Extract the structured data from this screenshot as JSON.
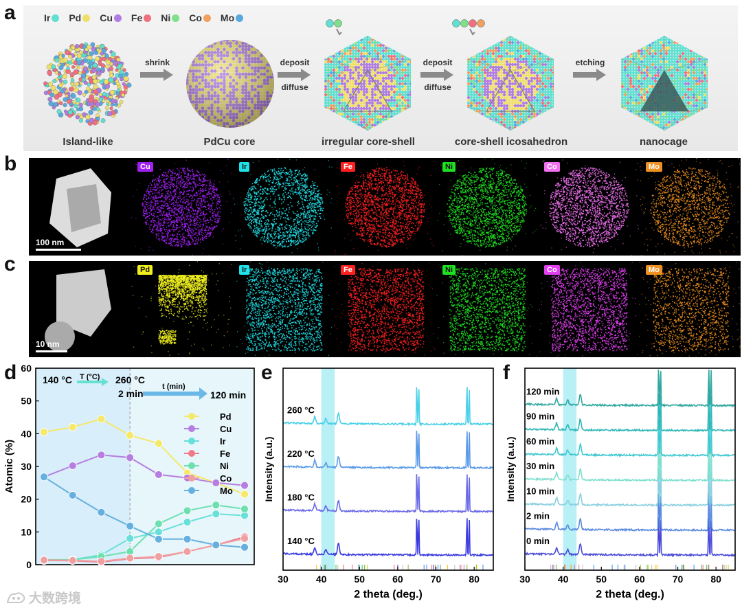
{
  "panel_labels": {
    "a": "a",
    "b": "b",
    "c": "c",
    "d": "d",
    "e": "e",
    "f": "f"
  },
  "panel_a": {
    "legend": [
      {
        "name": "Ir",
        "color": "#5fe0d0"
      },
      {
        "name": "Pd",
        "color": "#f0e06a"
      },
      {
        "name": "Cu",
        "color": "#b07ce0"
      },
      {
        "name": "Fe",
        "color": "#f07080"
      },
      {
        "name": "Ni",
        "color": "#7ee08a"
      },
      {
        "name": "Co",
        "color": "#f0a060"
      },
      {
        "name": "Mo",
        "color": "#5aa8e0"
      }
    ],
    "stages": [
      "Island-like",
      "PdCu core",
      "irregular core-shell",
      "core-shell icosahedron",
      "nanocage"
    ],
    "arrows": [
      {
        "top": "shrink",
        "bottom": ""
      },
      {
        "top": "deposit",
        "bottom": "diffuse"
      },
      {
        "top": "deposit",
        "bottom": "diffuse"
      },
      {
        "top": "etching",
        "bottom": ""
      }
    ]
  },
  "panel_b": {
    "maps": [
      {
        "tag": "",
        "color": "#ffffff"
      },
      {
        "tag": "Cu",
        "color": "#a020f0"
      },
      {
        "tag": "Ir",
        "color": "#20e0e8"
      },
      {
        "tag": "Fe",
        "color": "#ff2020"
      },
      {
        "tag": "Ni",
        "color": "#20e020"
      },
      {
        "tag": "Co",
        "color": "#f070f0"
      },
      {
        "tag": "Mo",
        "color": "#f09020"
      }
    ],
    "scale": "100 nm"
  },
  "panel_c": {
    "maps": [
      {
        "tag": "",
        "color": "#ffffff"
      },
      {
        "tag": "Pd",
        "color": "#f0f020"
      },
      {
        "tag": "Ir",
        "color": "#20e0e8"
      },
      {
        "tag": "Fe",
        "color": "#ff2020"
      },
      {
        "tag": "Ni",
        "color": "#20e020"
      },
      {
        "tag": "Co",
        "color": "#e040f0"
      },
      {
        "tag": "Mo",
        "color": "#f09020"
      }
    ],
    "scale": "10 nm"
  },
  "chart_data": [
    {
      "type": "line",
      "panel": "d",
      "ylabel": "Atomic (%)",
      "ylim": [
        0,
        60
      ],
      "yticks": [
        0,
        10,
        20,
        30,
        40,
        50,
        60
      ],
      "annotations": {
        "start_temp": "140 °C",
        "t_label": "T (°C)",
        "end_temp": "260 °C",
        "start_time": "2 min",
        "time_label": "t (min)",
        "end_time": "120 min"
      },
      "x_points": 8,
      "series": [
        {
          "name": "Pd",
          "color": "#f5e86a",
          "values": [
            40.5,
            42,
            44.5,
            39.5,
            37,
            28,
            25,
            21.5
          ]
        },
        {
          "name": "Cu",
          "color": "#b57ee0",
          "values": [
            26.8,
            30.2,
            33.5,
            32.7,
            27.5,
            26.5,
            25,
            24.2
          ]
        },
        {
          "name": "Ir",
          "color": "#66e0d8",
          "values": [
            1.2,
            1.5,
            3,
            8,
            10,
            13,
            15.5,
            15
          ]
        },
        {
          "name": "Fe",
          "color": "#f07a8a",
          "values": [
            1.3,
            1.2,
            0.8,
            1.8,
            2.2,
            4,
            6,
            8.5
          ]
        },
        {
          "name": "Ni",
          "color": "#6ee0b0",
          "values": [
            1.5,
            1.5,
            2.5,
            4,
            12.5,
            16.5,
            18.2,
            17
          ]
        },
        {
          "name": "Co",
          "color": "#f0a0a0",
          "values": [
            1.4,
            1.3,
            1,
            2,
            2.5,
            4,
            6,
            8
          ]
        },
        {
          "name": "Mo",
          "color": "#66b0e0",
          "values": [
            26.8,
            21.2,
            16,
            11.8,
            7.8,
            7.8,
            6,
            5.3
          ]
        }
      ]
    },
    {
      "type": "line",
      "panel": "e",
      "xlabel": "2 theta (deg.)",
      "ylabel": "Intensity (a.u.)",
      "xlim": [
        30,
        85
      ],
      "xticks": [
        30,
        40,
        50,
        60,
        70,
        80
      ],
      "highlight": [
        40,
        43.5
      ],
      "series": [
        {
          "name": "140 °C",
          "color": "#3a3ae0"
        },
        {
          "name": "180 °C",
          "color": "#6a6ae8"
        },
        {
          "name": "220 °C",
          "color": "#5a9ae8"
        },
        {
          "name": "260 °C",
          "color": "#4ad0e8"
        }
      ]
    },
    {
      "type": "line",
      "panel": "f",
      "xlabel": "2 theta (deg.)",
      "ylabel": "Intensity (a.u.)",
      "xlim": [
        30,
        85
      ],
      "xticks": [
        30,
        40,
        50,
        60,
        70,
        80
      ],
      "highlight": [
        40,
        43.5
      ],
      "series": [
        {
          "name": "0 min",
          "color": "#4a4ad8"
        },
        {
          "name": "2 min",
          "color": "#5a8ae0"
        },
        {
          "name": "10 min",
          "color": "#8ad0e0"
        },
        {
          "name": "30 min",
          "color": "#80e0d0"
        },
        {
          "name": "60 min",
          "color": "#40c8d0"
        },
        {
          "name": "90 min",
          "color": "#30b8b8"
        },
        {
          "name": "120 min",
          "color": "#30a8a0"
        }
      ]
    }
  ],
  "watermark": "大数跨境"
}
